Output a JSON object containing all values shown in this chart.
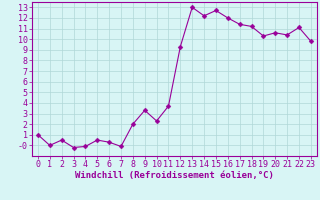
{
  "x": [
    0,
    1,
    2,
    3,
    4,
    5,
    6,
    7,
    8,
    9,
    10,
    11,
    12,
    13,
    14,
    15,
    16,
    17,
    18,
    19,
    20,
    21,
    22,
    23
  ],
  "y": [
    1.0,
    0.0,
    0.5,
    -0.2,
    -0.1,
    0.5,
    0.3,
    -0.1,
    2.0,
    3.3,
    2.3,
    3.7,
    9.3,
    13.0,
    12.2,
    12.7,
    12.0,
    11.4,
    11.2,
    10.3,
    10.6,
    10.4,
    11.1,
    9.8
  ],
  "line_color": "#990099",
  "marker": "D",
  "marker_size": 2.5,
  "bg_color": "#d8f5f5",
  "grid_color": "#b0d8d8",
  "xlim": [
    -0.5,
    23.5
  ],
  "ylim": [
    -1.0,
    13.5
  ],
  "xticks": [
    0,
    1,
    2,
    3,
    4,
    5,
    6,
    7,
    8,
    9,
    10,
    11,
    12,
    13,
    14,
    15,
    16,
    17,
    18,
    19,
    20,
    21,
    22,
    23
  ],
  "yticks": [
    0,
    1,
    2,
    3,
    4,
    5,
    6,
    7,
    8,
    9,
    10,
    11,
    12,
    13
  ],
  "xlabel": "Windchill (Refroidissement éolien,°C)",
  "tick_color": "#990099",
  "label_color": "#990099",
  "axis_color": "#990099",
  "xlabel_fontsize": 6.5,
  "tick_fontsize": 6.0,
  "linewidth": 0.8
}
